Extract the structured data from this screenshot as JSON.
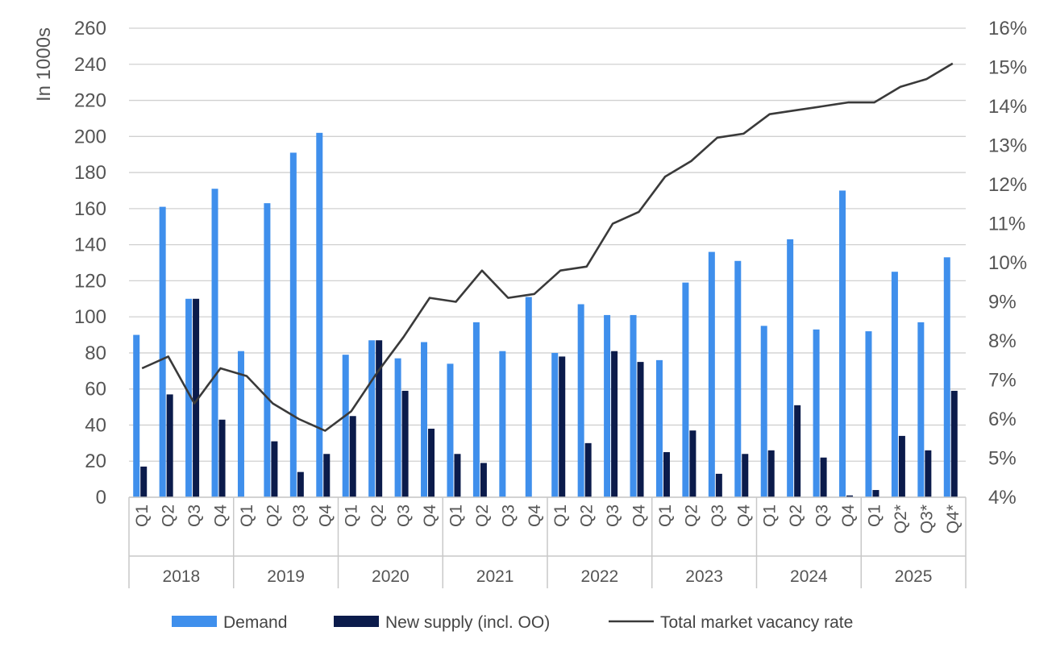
{
  "chart_data": {
    "type": "bar",
    "ylabel": "In 1000s",
    "ylim": [
      0,
      260
    ],
    "y_ticks": [
      "0",
      "20",
      "40",
      "60",
      "80",
      "100",
      "120",
      "140",
      "160",
      "180",
      "200",
      "220",
      "240",
      "260"
    ],
    "y2lim": [
      4,
      16
    ],
    "y2_ticks": [
      "4%",
      "5%",
      "6%",
      "7%",
      "8%",
      "9%",
      "10%",
      "11%",
      "12%",
      "13%",
      "14%",
      "15%",
      "16%"
    ],
    "grid": true,
    "legend_position": "bottom",
    "years": [
      "2018",
      "2019",
      "2020",
      "2021",
      "2022",
      "2023",
      "2024",
      "2025"
    ],
    "categories": [
      "Q1",
      "Q2",
      "Q3",
      "Q4",
      "Q1",
      "Q2",
      "Q3",
      "Q4",
      "Q1",
      "Q2",
      "Q3",
      "Q4",
      "Q1",
      "Q2",
      "Q3",
      "Q4",
      "Q1",
      "Q2",
      "Q3",
      "Q4",
      "Q1",
      "Q2",
      "Q3",
      "Q4",
      "Q1",
      "Q2",
      "Q3",
      "Q4",
      "Q1",
      "Q2*",
      "Q3*",
      "Q4*"
    ],
    "series": [
      {
        "name": "Demand",
        "kind": "bar",
        "axis": "left",
        "color": "#3f8fec",
        "values": [
          90,
          161,
          110,
          171,
          81,
          163,
          191,
          202,
          79,
          87,
          77,
          86,
          74,
          97,
          81,
          111,
          80,
          107,
          101,
          101,
          76,
          119,
          136,
          131,
          95,
          143,
          93,
          170,
          92,
          125,
          97,
          133
        ]
      },
      {
        "name": "New supply (incl. OO)",
        "kind": "bar",
        "axis": "left",
        "color": "#0b1b4b",
        "values": [
          17,
          57,
          110,
          43,
          0,
          31,
          14,
          24,
          45,
          87,
          59,
          38,
          24,
          19,
          0,
          0,
          78,
          30,
          81,
          75,
          25,
          37,
          13,
          24,
          26,
          51,
          22,
          1,
          4,
          34,
          26,
          59
        ]
      },
      {
        "name": "Total market vacancy rate",
        "kind": "line",
        "axis": "right",
        "color": "#3a3a3a",
        "values": [
          7.3,
          7.6,
          6.4,
          7.3,
          7.1,
          6.4,
          6.0,
          5.7,
          6.2,
          7.2,
          8.1,
          9.1,
          9.0,
          9.8,
          9.1,
          9.2,
          9.8,
          9.9,
          11.0,
          11.3,
          12.2,
          12.6,
          13.2,
          13.3,
          13.8,
          13.9,
          14.0,
          14.1,
          14.1,
          14.5,
          14.7,
          15.1
        ]
      }
    ]
  }
}
